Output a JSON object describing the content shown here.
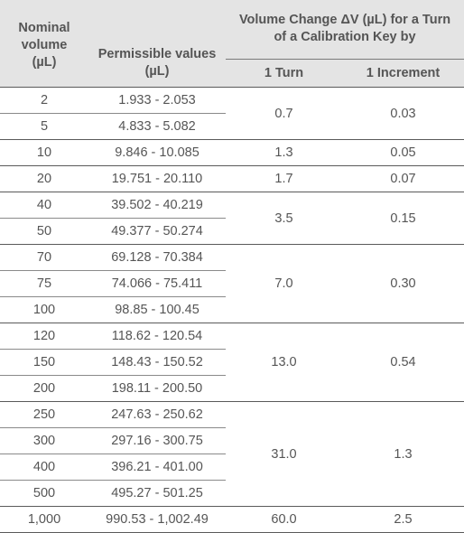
{
  "table": {
    "headers": {
      "nominal": [
        "Nominal",
        "volume",
        "(µL)"
      ],
      "permissible": [
        "Permissible values",
        "(µL)"
      ],
      "volume_change": [
        "Volume Change ΔV (µL) for a Turn",
        "of a Calibration Key by"
      ],
      "one_turn": "1 Turn",
      "one_increment": "1 Increment"
    },
    "groups": [
      {
        "turn": "0.7",
        "increment": "0.03",
        "rows": [
          {
            "nominal": "2",
            "permissible": "1.933 - 2.053"
          },
          {
            "nominal": "5",
            "permissible": "4.833 - 5.082"
          }
        ]
      },
      {
        "turn": "1.3",
        "increment": "0.05",
        "rows": [
          {
            "nominal": "10",
            "permissible": "9.846 - 10.085"
          }
        ]
      },
      {
        "turn": "1.7",
        "increment": "0.07",
        "rows": [
          {
            "nominal": "20",
            "permissible": "19.751 - 20.110"
          }
        ]
      },
      {
        "turn": "3.5",
        "increment": "0.15",
        "rows": [
          {
            "nominal": "40",
            "permissible": "39.502 - 40.219"
          },
          {
            "nominal": "50",
            "permissible": "49.377 - 50.274"
          }
        ]
      },
      {
        "turn": "7.0",
        "increment": "0.30",
        "rows": [
          {
            "nominal": "70",
            "permissible": "69.128 - 70.384"
          },
          {
            "nominal": "75",
            "permissible": "74.066 - 75.411"
          },
          {
            "nominal": "100",
            "permissible": "98.85 - 100.45"
          }
        ]
      },
      {
        "turn": "13.0",
        "increment": "0.54",
        "rows": [
          {
            "nominal": "120",
            "permissible": "118.62 - 120.54"
          },
          {
            "nominal": "150",
            "permissible": "148.43 - 150.52"
          },
          {
            "nominal": "200",
            "permissible": "198.11 - 200.50"
          }
        ]
      },
      {
        "turn": "31.0",
        "increment": "1.3",
        "rows": [
          {
            "nominal": "250",
            "permissible": "247.63 - 250.62"
          },
          {
            "nominal": "300",
            "permissible": "297.16 - 300.75"
          },
          {
            "nominal": "400",
            "permissible": "396.21 - 401.00"
          },
          {
            "nominal": "500",
            "permissible": "495.27 - 501.25"
          }
        ]
      },
      {
        "turn": "60.0",
        "increment": "2.5",
        "rows": [
          {
            "nominal": "1,000",
            "permissible": "990.53 - 1,002.49"
          }
        ]
      }
    ]
  },
  "colors": {
    "header_bg": "#e4e4e4",
    "text": "#555555",
    "rule": "#5a5a5a"
  }
}
